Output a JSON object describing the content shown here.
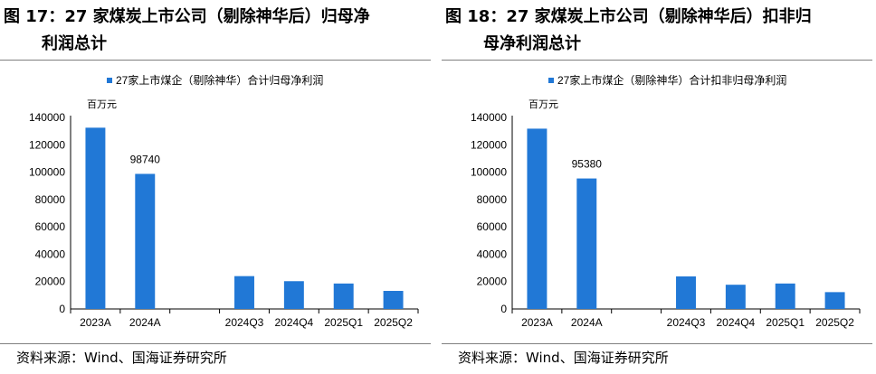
{
  "figures": [
    {
      "title_line1": "图 17：27 家煤炭上市公司（剔除神华后）归母净",
      "title_line2": "利润总计",
      "source": "资料来源：Wind、国海证券研究所"
    },
    {
      "title_line1": "图 18：27 家煤炭上市公司（剔除神华后）扣非归",
      "title_line2": "母净利润总计",
      "source": "资料来源：Wind、国海证券研究所"
    }
  ],
  "chart_data": [
    {
      "type": "bar",
      "categories": [
        "2023A",
        "2024A",
        "",
        "2024Q3",
        "2024Q4",
        "2025Q1",
        "2025Q2"
      ],
      "series": [
        {
          "name": "27家上市煤企（剔除神华）合计归母净利润",
          "values": [
            132500,
            98740,
            null,
            24000,
            20300,
            18600,
            13200
          ]
        }
      ],
      "data_labels": [
        null,
        "98740",
        null,
        null,
        null,
        null,
        null
      ],
      "unit_label": "百万元",
      "ylim": [
        0,
        140000
      ],
      "yticks": [
        0,
        20000,
        40000,
        60000,
        80000,
        100000,
        120000,
        140000
      ],
      "legend_position": "top-center",
      "grid": false,
      "color": "#2178d6"
    },
    {
      "type": "bar",
      "categories": [
        "2023A",
        "2024A",
        "",
        "2024Q3",
        "2024Q4",
        "2025Q1",
        "2025Q2"
      ],
      "series": [
        {
          "name": "27家上市煤企（剔除神华）合计扣非归母净利润",
          "values": [
            131800,
            95380,
            null,
            23800,
            17700,
            18600,
            12300
          ]
        }
      ],
      "data_labels": [
        null,
        "95380",
        null,
        null,
        null,
        null,
        null
      ],
      "unit_label": "百万元",
      "ylim": [
        0,
        140000
      ],
      "yticks": [
        0,
        20000,
        40000,
        60000,
        80000,
        100000,
        120000,
        140000
      ],
      "legend_position": "top-center",
      "grid": false,
      "color": "#2178d6"
    }
  ]
}
